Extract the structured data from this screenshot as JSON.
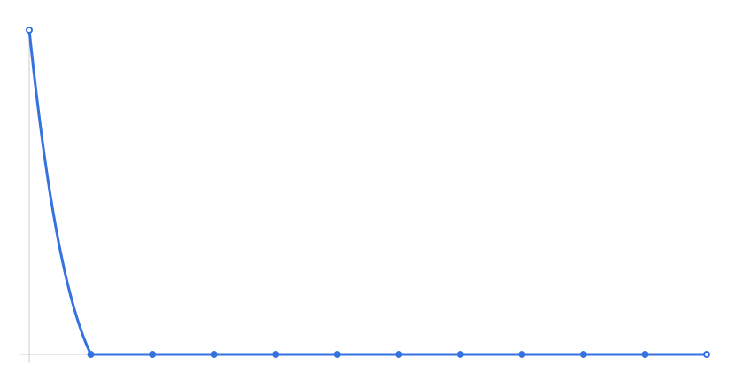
{
  "chart_data": {
    "type": "line",
    "title": "",
    "xlabel": "",
    "ylabel": "",
    "x": [
      0,
      1,
      2,
      3,
      4,
      5,
      6,
      7,
      8,
      9,
      10,
      11
    ],
    "series": [
      {
        "values": [
          1,
          0,
          0,
          0,
          0,
          0,
          0,
          0,
          0,
          0,
          0,
          0
        ],
        "color": "#3572e0"
      }
    ],
    "xlim": [
      0,
      11
    ],
    "ylim": [
      0,
      1
    ],
    "grid": false,
    "legend": "none",
    "axis_color": "#cccccc",
    "smooth": true
  }
}
